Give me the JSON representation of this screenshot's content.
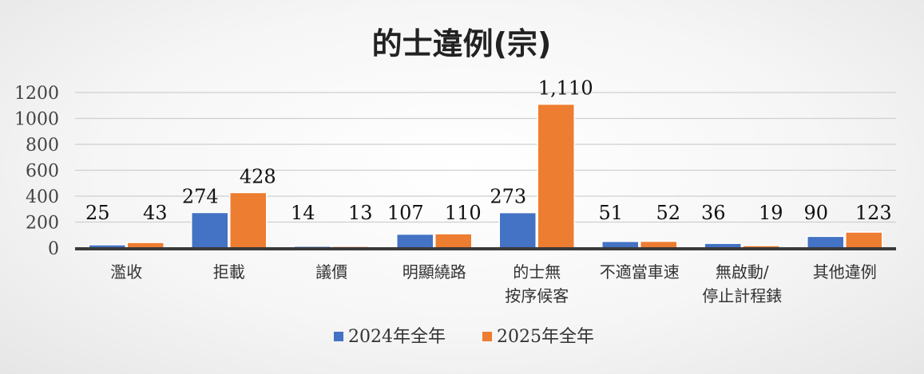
{
  "colors": {
    "series_2024": "#4472c4",
    "series_2025": "#ed7d31",
    "gridline": "#cfcfcf",
    "axis": "#3a3a3a"
  },
  "chart_data": {
    "type": "bar",
    "title": "的士違例(宗)",
    "categories": [
      [
        "濫收"
      ],
      [
        "拒載"
      ],
      [
        "議價"
      ],
      [
        "明顯繞路"
      ],
      [
        "的士無",
        "按序候客"
      ],
      [
        "不適當車速"
      ],
      [
        "無啟動/",
        "停止計程錶"
      ],
      [
        "其他違例"
      ]
    ],
    "series": [
      {
        "name": "2024年全年",
        "values": [
          25,
          274,
          14,
          107,
          273,
          51,
          36,
          90
        ],
        "labels": [
          "25",
          "274",
          "14",
          "107",
          "273",
          "51",
          "36",
          "90"
        ]
      },
      {
        "name": "2025年全年",
        "values": [
          43,
          428,
          13,
          110,
          1110,
          52,
          19,
          123
        ],
        "labels": [
          "43",
          "428",
          "13",
          "110",
          "1,110",
          "52",
          "19",
          "123"
        ]
      }
    ],
    "ylim": [
      0,
      1200
    ],
    "yticks": [
      0,
      200,
      400,
      600,
      800,
      1000,
      1200
    ],
    "ytick_labels": [
      "0",
      "200",
      "400",
      "600",
      "800",
      "1000",
      "1200"
    ],
    "xlabel": "",
    "ylabel": "",
    "grid": true,
    "legend_position": "bottom"
  }
}
